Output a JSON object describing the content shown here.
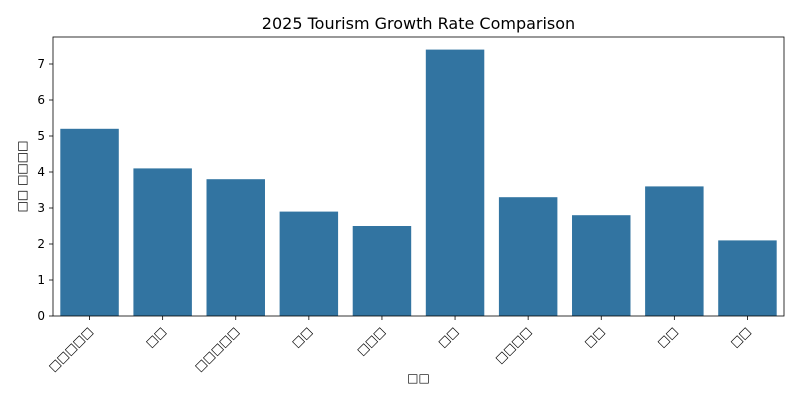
{
  "chart_data": {
    "type": "bar",
    "title": "2025 Tourism Growth Rate Comparison",
    "xlabel": "□□",
    "ylabel": "□□ □□□□",
    "categories": [
      "□□□□□",
      "□□",
      "□□□□□",
      "□□",
      "□□□",
      "□□",
      "□□□□",
      "□□",
      "□□",
      "□□"
    ],
    "values": [
      5.2,
      4.1,
      3.8,
      2.9,
      2.5,
      7.4,
      3.3,
      2.8,
      3.6,
      2.1
    ],
    "ylim": [
      0,
      7.75
    ],
    "yticks": [
      0,
      1,
      2,
      3,
      4,
      5,
      6,
      7
    ],
    "bar_color": "#3274a1",
    "grid": false,
    "legend": "none"
  }
}
